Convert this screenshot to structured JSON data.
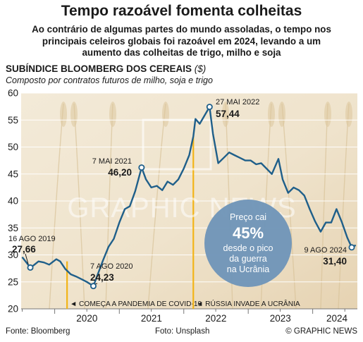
{
  "header": {
    "title": "Tempo razoável fomenta colheitas",
    "subtitle_lines": [
      "Ao contrário de algumas partes do mundo assoladas, o tempo nos",
      "principais celeiros globais foi razoável em 2024, levando a um",
      "aumento das colheitas de trigo, milho e soja"
    ]
  },
  "chart_head": {
    "title": "SUBÍNDICE BLOOMBERG DOS CEREAIS",
    "unit": "($)",
    "subtitle": "Composto por contratos futuros de milho, soja e trigo"
  },
  "watermark": "GRAPHIC NEWS",
  "colors": {
    "line": "#1f5f8a",
    "event_line": "#f2b418",
    "callout_fill": "#6f95b8",
    "background": "#efe3cc",
    "grid": "#ffffff"
  },
  "events": [
    {
      "date": "2020-03-11",
      "label": "◄ COMEÇA A PANDEMIA DE COVID-19"
    },
    {
      "date": "2022-02-24",
      "label": "◄ RÚSSIA INVADE A UCRÂNIA"
    }
  ],
  "annotations": [
    {
      "date_label": "16 AGO 2019",
      "value_label": "27,66"
    },
    {
      "date_label": "7 AGO 2020",
      "value_label": "24,23"
    },
    {
      "date_label": "7 MAI 2021",
      "value_label": "46,20"
    },
    {
      "date_label": "27 MAI 2022",
      "value_label": "57,44"
    },
    {
      "date_label": "9 AGO 2024",
      "value_label": "31,40"
    }
  ],
  "callout": {
    "line1": "Preço cai",
    "big": "45%",
    "line2": "desde o pico",
    "line3": "da guerra",
    "line4": "na Ucrânia"
  },
  "footer": {
    "source": "Fonte: Bloomberg",
    "photo": "Foto: Unsplash",
    "credit": "© GRAPHIC NEWS"
  },
  "chart_data": {
    "type": "line",
    "title": "SUBÍNDICE BLOOMBERG DOS CEREAIS",
    "ylabel": "($)",
    "ylim": [
      20,
      60
    ],
    "yticks": [
      20,
      25,
      30,
      35,
      40,
      45,
      50,
      55,
      60
    ],
    "xlim": [
      "2019-06-25",
      "2024-09-10"
    ],
    "xticks": [
      {
        "date": "2020-01-01",
        "label": "2020"
      },
      {
        "date": "2021-01-01",
        "label": "2021"
      },
      {
        "date": "2022-01-01",
        "label": "2022"
      },
      {
        "date": "2023-01-01",
        "label": "2023"
      },
      {
        "date": "2024-01-01",
        "label": "2024"
      }
    ],
    "grid": true,
    "series": [
      {
        "x": [
          "2019-07-01",
          "2019-08-16",
          "2019-09-01",
          "2019-10-01",
          "2019-11-01",
          "2019-12-01",
          "2020-01-10",
          "2020-02-01",
          "2020-03-01",
          "2020-04-01",
          "2020-05-01",
          "2020-06-01",
          "2020-07-01",
          "2020-08-07",
          "2020-09-01",
          "2020-10-01",
          "2020-11-01",
          "2020-12-01",
          "2021-01-01",
          "2021-02-01",
          "2021-03-01",
          "2021-04-01",
          "2021-05-07",
          "2021-06-01",
          "2021-07-01",
          "2021-08-01",
          "2021-09-01",
          "2021-10-01",
          "2021-11-01",
          "2021-12-01",
          "2022-01-01",
          "2022-02-01",
          "2022-02-24",
          "2022-03-08",
          "2022-04-01",
          "2022-05-27",
          "2022-06-15",
          "2022-07-15",
          "2022-08-15",
          "2022-09-15",
          "2022-10-15",
          "2022-11-15",
          "2022-12-15",
          "2023-01-15",
          "2023-02-15",
          "2023-03-15",
          "2023-04-15",
          "2023-05-15",
          "2023-06-21",
          "2023-07-15",
          "2023-08-15",
          "2023-09-15",
          "2023-10-15",
          "2023-11-15",
          "2023-12-15",
          "2024-01-15",
          "2024-02-15",
          "2024-03-15",
          "2024-04-15",
          "2024-05-15",
          "2024-06-15",
          "2024-07-15",
          "2024-08-09",
          "2024-09-01"
        ],
        "values": [
          29.6,
          27.66,
          28.0,
          28.8,
          28.6,
          28.2,
          29.2,
          28.8,
          27.4,
          26.4,
          26.0,
          25.5,
          25.0,
          24.23,
          26.4,
          29.0,
          31.5,
          33.0,
          36.0,
          38.5,
          39.0,
          41.8,
          46.2,
          44.0,
          42.5,
          42.8,
          42.0,
          43.6,
          43.0,
          44.0,
          46.0,
          48.5,
          52.0,
          55.2,
          54.3,
          57.44,
          52.5,
          47.0,
          48.0,
          49.0,
          48.5,
          48.0,
          47.5,
          47.5,
          46.8,
          47.0,
          46.0,
          45.0,
          47.8,
          44.0,
          41.5,
          42.5,
          42.0,
          41.0,
          38.5,
          36.2,
          34.3,
          36.0,
          36.0,
          38.5,
          36.0,
          33.2,
          31.4,
          31.8
        ]
      }
    ]
  }
}
